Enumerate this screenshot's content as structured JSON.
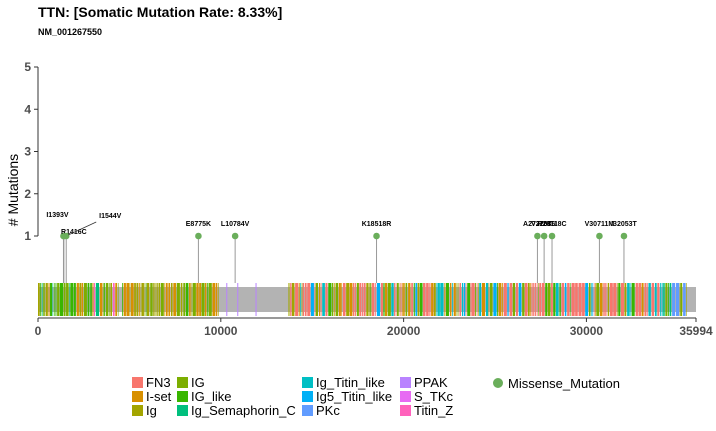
{
  "title": "TTN: [Somatic Mutation Rate: 8.33%]",
  "subtitle": "NM_001267550",
  "chart_data": {
    "type": "lollipop",
    "ylabel": "# Mutations",
    "ylim": [
      0,
      5
    ],
    "y_ticks": [
      "1",
      "2",
      "3",
      "4",
      "5"
    ],
    "xlim": [
      0,
      35994
    ],
    "x_ticks": [
      "0",
      "10000",
      "20000",
      "30000",
      "35994"
    ],
    "x_tick_values": [
      0,
      10000,
      20000,
      30000,
      35994
    ],
    "protein_length": 35994,
    "mutations": [
      {
        "label": "I1393V",
        "pos": 1393,
        "count": 1,
        "type": "Missense_Mutation"
      },
      {
        "label": "R1416C",
        "pos": 1416,
        "count": 1,
        "type": "Missense_Mutation"
      },
      {
        "label": "I1544V",
        "pos": 1544,
        "count": 1,
        "type": "Missense_Mutation"
      },
      {
        "label": "E8775K",
        "pos": 8775,
        "count": 1,
        "type": "Missense_Mutation"
      },
      {
        "label": "L10784V",
        "pos": 10784,
        "count": 1,
        "type": "Missense_Mutation"
      },
      {
        "label": "K18518R",
        "pos": 18518,
        "count": 1,
        "type": "Missense_Mutation"
      },
      {
        "label": "A27320T",
        "pos": 27320,
        "count": 1,
        "type": "Missense_Mutation"
      },
      {
        "label": "V27686I",
        "pos": 27686,
        "count": 1,
        "type": "Missense_Mutation"
      },
      {
        "label": "R28118C",
        "pos": 28118,
        "count": 1,
        "type": "Missense_Mutation"
      },
      {
        "label": "V30711M",
        "pos": 30711,
        "count": 1,
        "type": "Missense_Mutation"
      },
      {
        "label": "I32053T",
        "pos": 32053,
        "count": 1,
        "type": "Missense_Mutation"
      }
    ],
    "domain_colors": {
      "FN3": "#F8766D",
      "I-set": "#D89000",
      "Ig": "#A3A500",
      "IG": "#7CAE00",
      "IG_like": "#39B600",
      "Ig_Semaphorin_C": "#00BF7D",
      "Ig_Titin_like": "#00BFC4",
      "Ig5_Titin_like": "#00B0F6",
      "PKc": "#619CFF",
      "PPAK": "#B983FF",
      "S_TKc": "#E76BF3",
      "Titin_Z": "#FF62BC"
    },
    "legend": {
      "domains": [
        "FN3",
        "I-set",
        "Ig",
        "IG",
        "IG_like",
        "Ig_Semaphorin_C",
        "Ig_Titin_like",
        "Ig5_Titin_like",
        "PKc",
        "PPAK",
        "S_TKc",
        "Titin_Z"
      ],
      "mutation_types": [
        {
          "name": "Missense_Mutation",
          "color": "#6AAE5B"
        }
      ]
    }
  }
}
